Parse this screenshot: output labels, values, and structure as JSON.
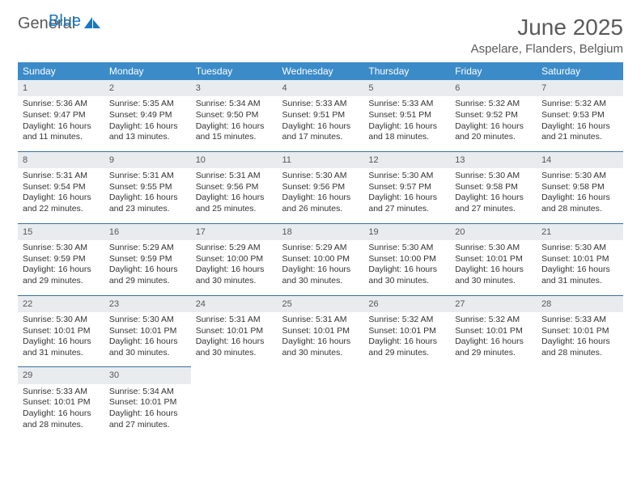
{
  "brand": {
    "general": "General",
    "blue": "Blue"
  },
  "title": "June 2025",
  "location": "Aspelare, Flanders, Belgium",
  "colors": {
    "header_bg": "#3b8bc9",
    "header_text": "#ffffff",
    "daynum_bg": "#e9ecef",
    "rule": "#3b6f9e",
    "logo_blue": "#1976c1",
    "text_gray": "#5a5a5a"
  },
  "dow": [
    "Sunday",
    "Monday",
    "Tuesday",
    "Wednesday",
    "Thursday",
    "Friday",
    "Saturday"
  ],
  "weeks": [
    [
      {
        "n": "1",
        "sr": "5:36 AM",
        "ss": "9:47 PM",
        "dl": "16 hours and 11 minutes."
      },
      {
        "n": "2",
        "sr": "5:35 AM",
        "ss": "9:49 PM",
        "dl": "16 hours and 13 minutes."
      },
      {
        "n": "3",
        "sr": "5:34 AM",
        "ss": "9:50 PM",
        "dl": "16 hours and 15 minutes."
      },
      {
        "n": "4",
        "sr": "5:33 AM",
        "ss": "9:51 PM",
        "dl": "16 hours and 17 minutes."
      },
      {
        "n": "5",
        "sr": "5:33 AM",
        "ss": "9:51 PM",
        "dl": "16 hours and 18 minutes."
      },
      {
        "n": "6",
        "sr": "5:32 AM",
        "ss": "9:52 PM",
        "dl": "16 hours and 20 minutes."
      },
      {
        "n": "7",
        "sr": "5:32 AM",
        "ss": "9:53 PM",
        "dl": "16 hours and 21 minutes."
      }
    ],
    [
      {
        "n": "8",
        "sr": "5:31 AM",
        "ss": "9:54 PM",
        "dl": "16 hours and 22 minutes."
      },
      {
        "n": "9",
        "sr": "5:31 AM",
        "ss": "9:55 PM",
        "dl": "16 hours and 23 minutes."
      },
      {
        "n": "10",
        "sr": "5:31 AM",
        "ss": "9:56 PM",
        "dl": "16 hours and 25 minutes."
      },
      {
        "n": "11",
        "sr": "5:30 AM",
        "ss": "9:56 PM",
        "dl": "16 hours and 26 minutes."
      },
      {
        "n": "12",
        "sr": "5:30 AM",
        "ss": "9:57 PM",
        "dl": "16 hours and 27 minutes."
      },
      {
        "n": "13",
        "sr": "5:30 AM",
        "ss": "9:58 PM",
        "dl": "16 hours and 27 minutes."
      },
      {
        "n": "14",
        "sr": "5:30 AM",
        "ss": "9:58 PM",
        "dl": "16 hours and 28 minutes."
      }
    ],
    [
      {
        "n": "15",
        "sr": "5:30 AM",
        "ss": "9:59 PM",
        "dl": "16 hours and 29 minutes."
      },
      {
        "n": "16",
        "sr": "5:29 AM",
        "ss": "9:59 PM",
        "dl": "16 hours and 29 minutes."
      },
      {
        "n": "17",
        "sr": "5:29 AM",
        "ss": "10:00 PM",
        "dl": "16 hours and 30 minutes."
      },
      {
        "n": "18",
        "sr": "5:29 AM",
        "ss": "10:00 PM",
        "dl": "16 hours and 30 minutes."
      },
      {
        "n": "19",
        "sr": "5:30 AM",
        "ss": "10:00 PM",
        "dl": "16 hours and 30 minutes."
      },
      {
        "n": "20",
        "sr": "5:30 AM",
        "ss": "10:01 PM",
        "dl": "16 hours and 30 minutes."
      },
      {
        "n": "21",
        "sr": "5:30 AM",
        "ss": "10:01 PM",
        "dl": "16 hours and 31 minutes."
      }
    ],
    [
      {
        "n": "22",
        "sr": "5:30 AM",
        "ss": "10:01 PM",
        "dl": "16 hours and 31 minutes."
      },
      {
        "n": "23",
        "sr": "5:30 AM",
        "ss": "10:01 PM",
        "dl": "16 hours and 30 minutes."
      },
      {
        "n": "24",
        "sr": "5:31 AM",
        "ss": "10:01 PM",
        "dl": "16 hours and 30 minutes."
      },
      {
        "n": "25",
        "sr": "5:31 AM",
        "ss": "10:01 PM",
        "dl": "16 hours and 30 minutes."
      },
      {
        "n": "26",
        "sr": "5:32 AM",
        "ss": "10:01 PM",
        "dl": "16 hours and 29 minutes."
      },
      {
        "n": "27",
        "sr": "5:32 AM",
        "ss": "10:01 PM",
        "dl": "16 hours and 29 minutes."
      },
      {
        "n": "28",
        "sr": "5:33 AM",
        "ss": "10:01 PM",
        "dl": "16 hours and 28 minutes."
      }
    ],
    [
      {
        "n": "29",
        "sr": "5:33 AM",
        "ss": "10:01 PM",
        "dl": "16 hours and 28 minutes."
      },
      {
        "n": "30",
        "sr": "5:34 AM",
        "ss": "10:01 PM",
        "dl": "16 hours and 27 minutes."
      },
      null,
      null,
      null,
      null,
      null
    ]
  ],
  "labels": {
    "sunrise": "Sunrise: ",
    "sunset": "Sunset: ",
    "daylight": "Daylight: "
  }
}
